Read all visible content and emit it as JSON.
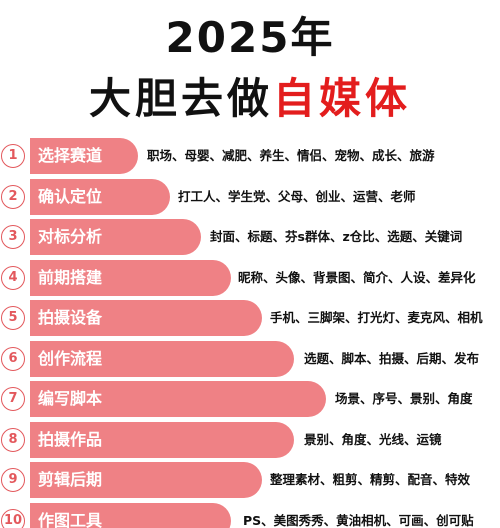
{
  "title": {
    "year_line": "2025年",
    "main_part1": "大胆去做",
    "main_part2": "自媒体"
  },
  "colors": {
    "accent_red": "#e31d1d",
    "bar_pink": "#ef8185",
    "number_circle": "#e3585c"
  },
  "items": [
    {
      "number": "1",
      "label": "选择赛道",
      "desc": "职场、母婴、减肥、养生、情侣、宠物、成长、旅游"
    },
    {
      "number": "2",
      "label": "确认定位",
      "desc": "打工人、学生党、父母、创业、运营、老师"
    },
    {
      "number": "3",
      "label": "对标分析",
      "desc": "封面、标题、芬s群体、z仓比、选题、关键词"
    },
    {
      "number": "4",
      "label": "前期搭建",
      "desc": "昵称、头像、背景图、简介、人设、差异化"
    },
    {
      "number": "5",
      "label": "拍摄设备",
      "desc": "手机、三脚架、打光灯、麦克风、相机"
    },
    {
      "number": "6",
      "label": "创作流程",
      "desc": "选题、脚本、拍摄、后期、发布"
    },
    {
      "number": "7",
      "label": "编写脚本",
      "desc": "场景、序号、景别、角度"
    },
    {
      "number": "8",
      "label": "拍摄作品",
      "desc": "景别、角度、光线、运镜"
    },
    {
      "number": "9",
      "label": "剪辑后期",
      "desc": "整理素材、粗剪、精剪、配音、特效"
    },
    {
      "number": "10",
      "label": "作图工具",
      "desc": "PS、美图秀秀、黄油相机、可画、创可贴"
    }
  ]
}
